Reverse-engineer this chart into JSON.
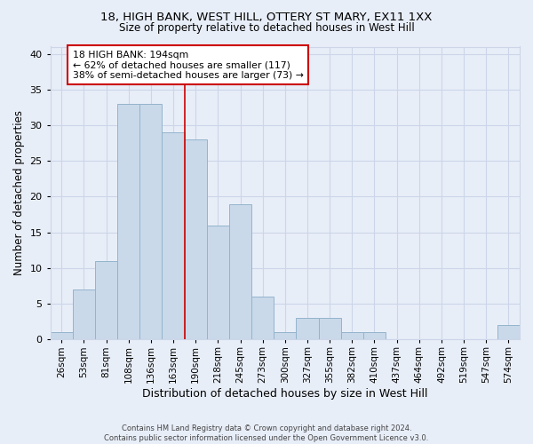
{
  "title1": "18, HIGH BANK, WEST HILL, OTTERY ST MARY, EX11 1XX",
  "title2": "Size of property relative to detached houses in West Hill",
  "xlabel": "Distribution of detached houses by size in West Hill",
  "ylabel": "Number of detached properties",
  "footer1": "Contains HM Land Registry data © Crown copyright and database right 2024.",
  "footer2": "Contains public sector information licensed under the Open Government Licence v3.0.",
  "categories": [
    "26sqm",
    "53sqm",
    "81sqm",
    "108sqm",
    "136sqm",
    "163sqm",
    "190sqm",
    "218sqm",
    "245sqm",
    "273sqm",
    "300sqm",
    "327sqm",
    "355sqm",
    "382sqm",
    "410sqm",
    "437sqm",
    "464sqm",
    "492sqm",
    "519sqm",
    "547sqm",
    "574sqm"
  ],
  "values": [
    1,
    7,
    11,
    33,
    33,
    29,
    28,
    16,
    19,
    6,
    1,
    3,
    3,
    1,
    1,
    0,
    0,
    0,
    0,
    0,
    2
  ],
  "bar_color": "#c9d9ea",
  "bar_edge_color": "#93b4cc",
  "annotation_line_bin": 6.0,
  "annotation_text_line1": "18 HIGH BANK: 194sqm",
  "annotation_text_line2": "← 62% of detached houses are smaller (117)",
  "annotation_text_line3": "38% of semi-detached houses are larger (73) →",
  "annotation_box_color": "#ffffff",
  "annotation_box_edge_color": "#cc0000",
  "vline_color": "#cc0000",
  "grid_color": "#ccd6e8",
  "bg_color": "#e8eef8",
  "ylim": [
    0,
    41
  ],
  "yticks": [
    0,
    5,
    10,
    15,
    20,
    25,
    30,
    35,
    40
  ]
}
